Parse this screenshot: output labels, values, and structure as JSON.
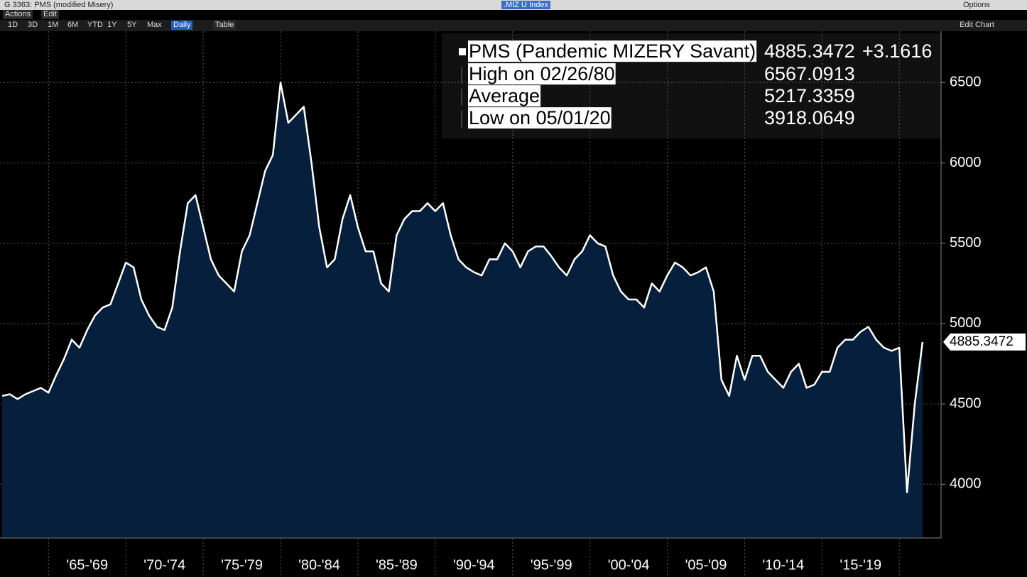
{
  "window": {
    "title": "G 3363: PMS (modified Misery)",
    "ticker": ".MIZ U Index",
    "options": "Options",
    "menus": [
      "Actions",
      "Edit"
    ],
    "ranges": [
      "1D",
      "3D",
      "1M",
      "6M",
      "YTD",
      "1Y",
      "5Y",
      "Max"
    ],
    "frequency": "Daily",
    "table": "Table",
    "edit_chart": "Edit Chart"
  },
  "chart_data": {
    "type": "area",
    "categories": [
      null,
      null,
      null,
      null,
      null,
      null,
      null,
      null,
      null,
      null,
      null,
      "'65-'69",
      null,
      null,
      null,
      null,
      null,
      null,
      null,
      null,
      null,
      "'70-'74",
      null,
      null,
      null,
      null,
      null,
      null,
      null,
      null,
      null,
      "'75-'79",
      null,
      null,
      null,
      null,
      null,
      null,
      null,
      null,
      null,
      "'80-'84",
      null,
      null,
      null,
      null,
      null,
      null,
      null,
      null,
      null,
      "'85-'89",
      null,
      null,
      null,
      null,
      null,
      null,
      null,
      null,
      null,
      "'90-'94",
      null,
      null,
      null,
      null,
      null,
      null,
      null,
      null,
      null,
      "'95-'99",
      null,
      null,
      null,
      null,
      null,
      null,
      null,
      null,
      null,
      "'00-'04",
      null,
      null,
      null,
      null,
      null,
      null,
      null,
      null,
      null,
      "'05-'09",
      null,
      null,
      null,
      null,
      null,
      null,
      null,
      null,
      null,
      "'10-'14",
      null,
      null,
      null,
      null,
      null,
      null,
      null,
      null,
      null,
      "'15-'19",
      null,
      null,
      null,
      null,
      null,
      null,
      null,
      null
    ],
    "series": [
      {
        "name": "PMS (Pandemic MIZERY Savant)",
        "color": "#ffffff",
        "fill": "#061f3c",
        "change": "+3.1616",
        "values": [
          4550,
          4560,
          4530,
          4560,
          4580,
          4600,
          4570,
          4680,
          4780,
          4900,
          4850,
          4960,
          5050,
          5100,
          5120,
          5250,
          5380,
          5350,
          5150,
          5050,
          4980,
          4960,
          5100,
          5450,
          5750,
          5800,
          5600,
          5400,
          5300,
          5250,
          5200,
          5450,
          5550,
          5750,
          5950,
          6050,
          6500,
          6250,
          6300,
          6350,
          6000,
          5600,
          5350,
          5400,
          5650,
          5800,
          5600,
          5450,
          5450,
          5250,
          5200,
          5550,
          5650,
          5700,
          5700,
          5750,
          5700,
          5750,
          5550,
          5400,
          5350,
          5320,
          5300,
          5400,
          5400,
          5500,
          5450,
          5350,
          5450,
          5480,
          5480,
          5420,
          5350,
          5300,
          5400,
          5450,
          5550,
          5500,
          5480,
          5300,
          5200,
          5150,
          5150,
          5100,
          5250,
          5200,
          5300,
          5380,
          5350,
          5300,
          5320,
          5350,
          5200,
          4650,
          4550,
          4800,
          4650,
          4800,
          4800,
          4700,
          4650,
          4600,
          4700,
          4750,
          4600,
          4620,
          4700,
          4700,
          4850,
          4900,
          4900,
          4950,
          4980,
          4900,
          4850,
          4830,
          4850,
          3950,
          4500,
          4885.3472
        ]
      }
    ],
    "stats": [
      {
        "label": "High on 02/26/80",
        "value": 6567.0913
      },
      {
        "label": "Average",
        "value": 5217.3359
      },
      {
        "label": "Low on 05/01/20",
        "value": 3918.0649
      }
    ],
    "ylim": [
      3670,
      6820
    ],
    "yticks": [
      4000,
      4500,
      5000,
      5500,
      6000,
      6500
    ],
    "grid": true
  }
}
